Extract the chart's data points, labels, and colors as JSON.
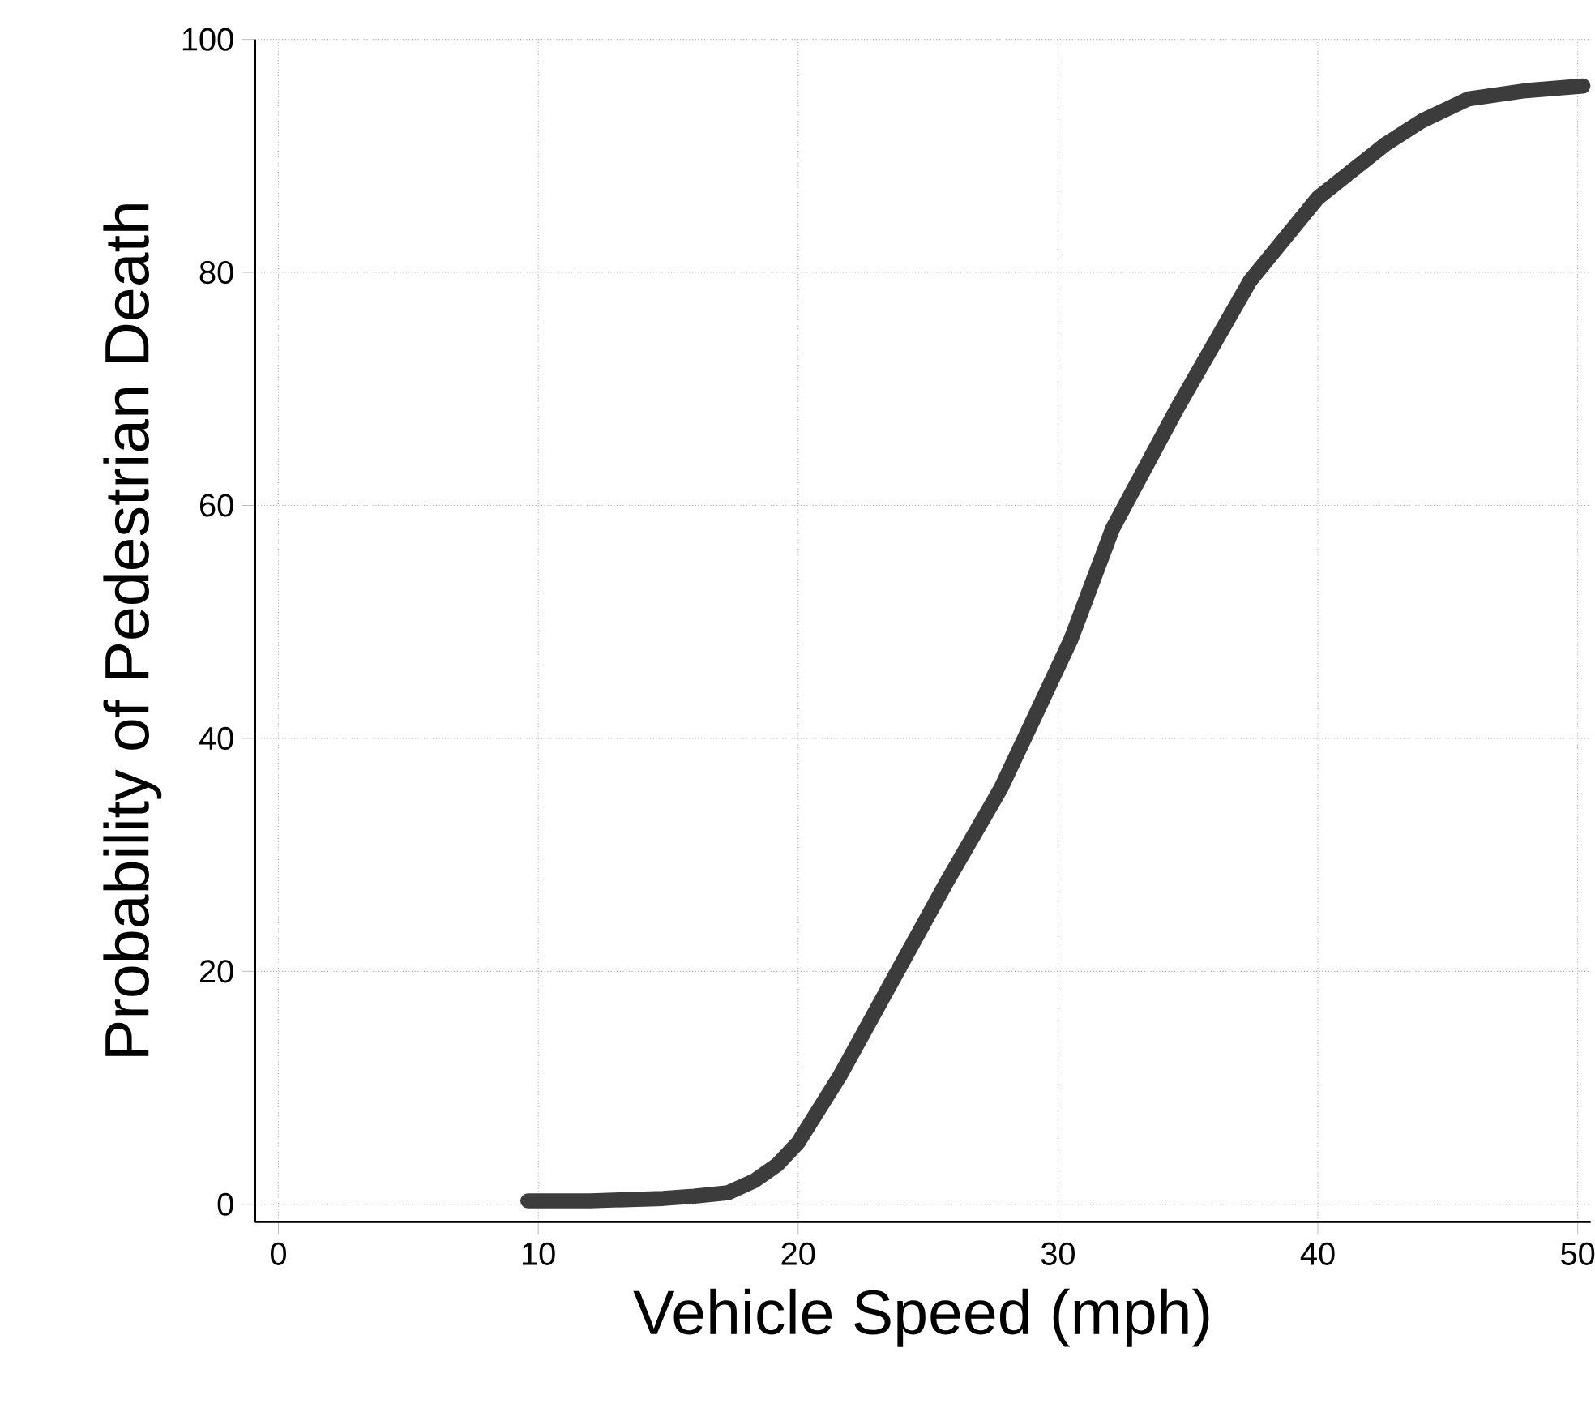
{
  "chart_data": {
    "type": "line",
    "xlabel": "Vehicle Speed (mph)",
    "ylabel": "Probability of Pedestrian Death",
    "xlim": [
      -0.9,
      50.5
    ],
    "ylim": [
      -1.5,
      100
    ],
    "xticks": [
      0,
      10,
      20,
      30,
      40,
      50
    ],
    "yticks": [
      0,
      20,
      40,
      60,
      80,
      100
    ],
    "grid": true,
    "marker": "none",
    "line_style": "solid",
    "series": [
      {
        "color": "#3c3c3c",
        "x": [
          9.6,
          12,
          14.8,
          16,
          17.3,
          18.3,
          19.2,
          20,
          21.6,
          23.7,
          25.7,
          27.8,
          29.3,
          30.5,
          32.1,
          34.6,
          37.4,
          40,
          42.6,
          44,
          45.8,
          48,
          50.2
        ],
        "values": [
          0.3,
          0.3,
          0.5,
          0.7,
          1,
          2,
          3.4,
          5.3,
          11,
          19.5,
          27.6,
          35.7,
          42.8,
          48.5,
          58,
          68.4,
          79.3,
          86.4,
          91,
          93,
          94.9,
          95.6,
          96
        ]
      }
    ]
  }
}
